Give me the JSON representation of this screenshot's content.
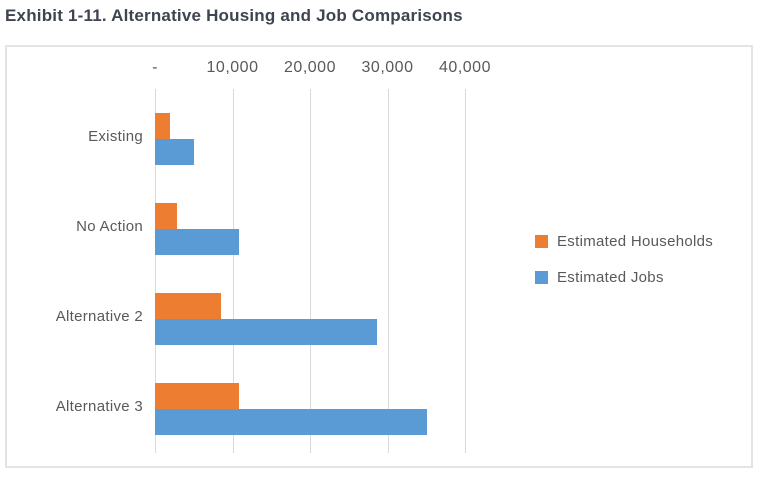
{
  "title": "Exhibit 1-11. Alternative Housing and Job Comparisons",
  "chart_data": {
    "type": "bar",
    "orientation": "horizontal",
    "title": "Exhibit 1-11. Alternative Housing and Job Comparisons",
    "categories": [
      "Existing",
      "No Action",
      "Alternative 2",
      "Alternative 3"
    ],
    "series": [
      {
        "name": "Estimated Households",
        "color": "#ED7D31",
        "values": [
          1900,
          2800,
          8500,
          10900
        ]
      },
      {
        "name": "Estimated Jobs",
        "color": "#5B9BD5",
        "values": [
          5000,
          10900,
          28600,
          35100
        ]
      }
    ],
    "x_axis": {
      "position": "top",
      "tick_labels": [
        "-",
        "10,000",
        "20,000",
        "30,000",
        "40,000"
      ],
      "tick_values": [
        0,
        10000,
        20000,
        30000,
        40000
      ],
      "min": 0,
      "max": 40000
    },
    "legend": {
      "position": "right"
    },
    "grid": true,
    "colors": {
      "gridline": "#D9D9D9",
      "axis_text": "#595959",
      "title_text": "#3E4450",
      "frame_border": "#E4E4E4",
      "background": "#FFFFFF"
    }
  }
}
